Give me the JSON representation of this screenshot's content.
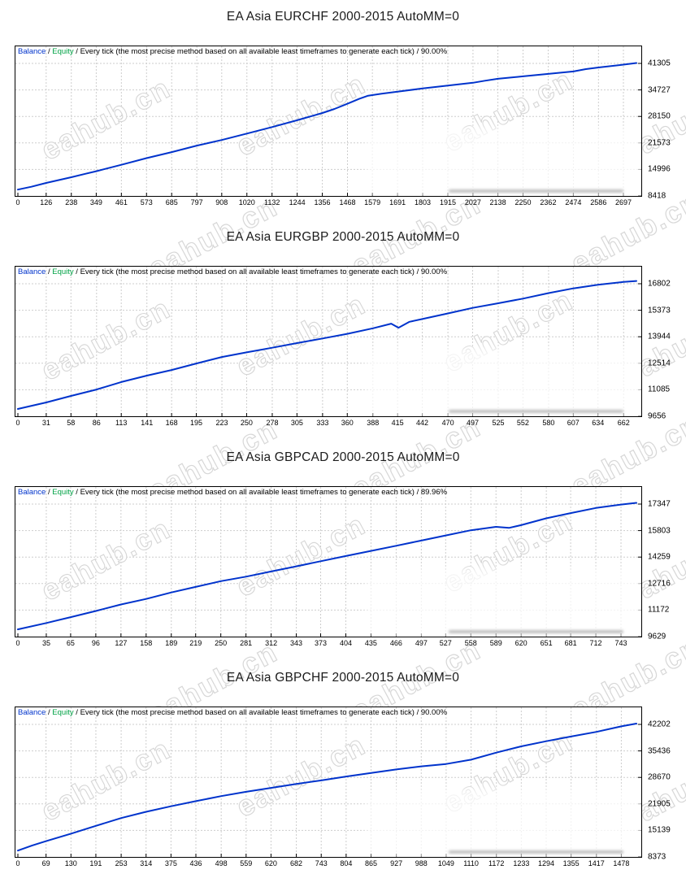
{
  "page": {
    "watermark_text": "eahub.cn"
  },
  "colors": {
    "balance_label": "#0033cc",
    "equity_label": "#00a245",
    "line": "#0033cc",
    "grid": "#cdcdcd",
    "border": "#000000"
  },
  "chart_data": [
    {
      "type": "line",
      "title": "EA Asia EURCHF 2000-2015 AutoMM=0",
      "legend": {
        "balance": "Balance",
        "sep1": " / ",
        "equity": "Equity",
        "rest": " / Every tick (the most precise method based on all available least timeframes to generate each tick) / 90.00%"
      },
      "series_name": "Balance",
      "x_ticks": [
        0,
        126,
        238,
        349,
        461,
        573,
        685,
        797,
        908,
        1020,
        1132,
        1244,
        1356,
        1468,
        1579,
        1691,
        1803,
        1915,
        2027,
        2138,
        2250,
        2362,
        2474,
        2586,
        2697
      ],
      "y_ticks": [
        41305,
        34727,
        28150,
        21573,
        14996,
        8418
      ],
      "x_max": 2755,
      "ylim": [
        8418,
        45500
      ],
      "points": [
        [
          0,
          10000
        ],
        [
          60,
          10700
        ],
        [
          126,
          11650
        ],
        [
          238,
          13050
        ],
        [
          300,
          13900
        ],
        [
          349,
          14550
        ],
        [
          461,
          16150
        ],
        [
          573,
          17800
        ],
        [
          685,
          19300
        ],
        [
          797,
          20900
        ],
        [
          908,
          22300
        ],
        [
          1020,
          23900
        ],
        [
          1132,
          25500
        ],
        [
          1244,
          27200
        ],
        [
          1356,
          29000
        ],
        [
          1410,
          30000
        ],
        [
          1468,
          31300
        ],
        [
          1520,
          32500
        ],
        [
          1560,
          33300
        ],
        [
          1620,
          33800
        ],
        [
          1691,
          34300
        ],
        [
          1803,
          35100
        ],
        [
          1915,
          35800
        ],
        [
          2027,
          36500
        ],
        [
          2080,
          37000
        ],
        [
          2138,
          37500
        ],
        [
          2250,
          38100
        ],
        [
          2362,
          38700
        ],
        [
          2474,
          39300
        ],
        [
          2530,
          39900
        ],
        [
          2586,
          40300
        ],
        [
          2697,
          41000
        ],
        [
          2755,
          41400
        ]
      ]
    },
    {
      "type": "line",
      "title": "EA Asia EURGBP 2000-2015 AutoMM=0",
      "legend": {
        "balance": "Balance",
        "sep1": " / ",
        "equity": "Equity",
        "rest": " / Every tick (the most precise method based on all available least timeframes to generate each tick) / 90.00%"
      },
      "series_name": "Balance",
      "x_ticks": [
        0,
        31,
        58,
        86,
        113,
        141,
        168,
        195,
        223,
        250,
        278,
        305,
        333,
        360,
        388,
        415,
        442,
        470,
        497,
        525,
        552,
        580,
        607,
        634,
        662
      ],
      "y_ticks": [
        16802,
        15373,
        13944,
        12514,
        11085,
        9656
      ],
      "x_max": 676,
      "ylim": [
        9656,
        17700
      ],
      "points": [
        [
          0,
          10050
        ],
        [
          31,
          10400
        ],
        [
          58,
          10750
        ],
        [
          86,
          11100
        ],
        [
          113,
          11500
        ],
        [
          141,
          11850
        ],
        [
          168,
          12150
        ],
        [
          195,
          12500
        ],
        [
          223,
          12850
        ],
        [
          250,
          13100
        ],
        [
          278,
          13350
        ],
        [
          305,
          13600
        ],
        [
          333,
          13850
        ],
        [
          360,
          14100
        ],
        [
          388,
          14400
        ],
        [
          408,
          14650
        ],
        [
          416,
          14430
        ],
        [
          428,
          14750
        ],
        [
          442,
          14900
        ],
        [
          470,
          15200
        ],
        [
          497,
          15500
        ],
        [
          525,
          15750
        ],
        [
          552,
          16000
        ],
        [
          580,
          16300
        ],
        [
          607,
          16550
        ],
        [
          634,
          16750
        ],
        [
          662,
          16900
        ],
        [
          676,
          16950
        ]
      ]
    },
    {
      "type": "line",
      "title": "EA Asia GBPCAD 2000-2015 AutoMM=0",
      "legend": {
        "balance": "Balance",
        "sep1": " / ",
        "equity": "Equity",
        "rest": " / Every tick (the most precise method based on all available least timeframes to generate each tick) / 89.96%"
      },
      "series_name": "Balance",
      "x_ticks": [
        0,
        35,
        65,
        96,
        127,
        158,
        189,
        219,
        250,
        281,
        312,
        343,
        373,
        404,
        435,
        466,
        497,
        527,
        558,
        589,
        620,
        651,
        681,
        712,
        743
      ],
      "y_ticks": [
        17347,
        15803,
        14259,
        12716,
        11172,
        9629
      ],
      "x_max": 762,
      "ylim": [
        9629,
        18300
      ],
      "points": [
        [
          0,
          10050
        ],
        [
          35,
          10420
        ],
        [
          65,
          10760
        ],
        [
          96,
          11120
        ],
        [
          127,
          11500
        ],
        [
          158,
          11820
        ],
        [
          189,
          12200
        ],
        [
          219,
          12520
        ],
        [
          250,
          12860
        ],
        [
          281,
          13120
        ],
        [
          312,
          13420
        ],
        [
          343,
          13720
        ],
        [
          373,
          14020
        ],
        [
          404,
          14320
        ],
        [
          435,
          14620
        ],
        [
          466,
          14920
        ],
        [
          497,
          15220
        ],
        [
          527,
          15520
        ],
        [
          558,
          15820
        ],
        [
          589,
          16020
        ],
        [
          605,
          15960
        ],
        [
          620,
          16120
        ],
        [
          651,
          16520
        ],
        [
          681,
          16820
        ],
        [
          712,
          17120
        ],
        [
          743,
          17320
        ],
        [
          762,
          17420
        ]
      ]
    },
    {
      "type": "line",
      "title": "EA Asia GBPCHF 2000-2015 AutoMM=0",
      "legend": {
        "balance": "Balance",
        "sep1": " / ",
        "equity": "Equity",
        "rest": " / Every tick (the most precise method based on all available least timeframes to generate each tick) / 90.00%"
      },
      "series_name": "Balance",
      "x_ticks": [
        0,
        69,
        130,
        191,
        253,
        314,
        375,
        436,
        498,
        559,
        620,
        682,
        743,
        804,
        865,
        927,
        988,
        1049,
        1110,
        1172,
        1233,
        1294,
        1355,
        1417,
        1478
      ],
      "y_ticks": [
        42202,
        35436,
        28670,
        21905,
        15139,
        8373
      ],
      "x_max": 1515,
      "ylim": [
        8373,
        46600
      ],
      "points": [
        [
          0,
          10000
        ],
        [
          35,
          11300
        ],
        [
          69,
          12400
        ],
        [
          130,
          14300
        ],
        [
          191,
          16300
        ],
        [
          253,
          18300
        ],
        [
          314,
          19900
        ],
        [
          375,
          21300
        ],
        [
          436,
          22600
        ],
        [
          498,
          23900
        ],
        [
          559,
          25000
        ],
        [
          620,
          26000
        ],
        [
          682,
          27000
        ],
        [
          743,
          27900
        ],
        [
          804,
          28900
        ],
        [
          865,
          29800
        ],
        [
          927,
          30700
        ],
        [
          988,
          31500
        ],
        [
          1049,
          32100
        ],
        [
          1110,
          33200
        ],
        [
          1172,
          35000
        ],
        [
          1233,
          36600
        ],
        [
          1294,
          37900
        ],
        [
          1355,
          39100
        ],
        [
          1417,
          40300
        ],
        [
          1478,
          41700
        ],
        [
          1515,
          42400
        ]
      ]
    }
  ]
}
